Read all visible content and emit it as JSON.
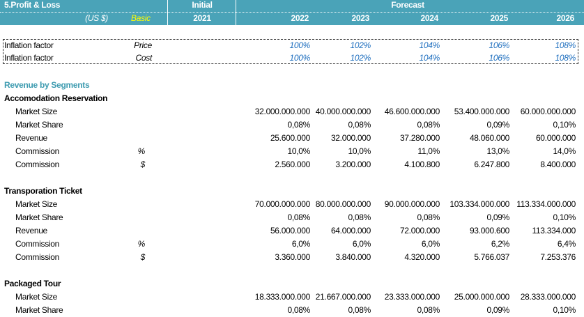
{
  "header": {
    "title": "5.Profit & Loss",
    "currency": "(US $)",
    "scenario": "Basic",
    "initial": "Initial",
    "forecast": "Forecast",
    "years": [
      "2021",
      "2022",
      "2023",
      "2024",
      "2025",
      "2026"
    ]
  },
  "inflation": [
    {
      "label": "Inflation factor",
      "type": "Price",
      "values": [
        "100%",
        "102%",
        "104%",
        "106%",
        "108%"
      ]
    },
    {
      "label": "Inflation factor",
      "type": "Cost",
      "values": [
        "100%",
        "102%",
        "104%",
        "106%",
        "108%"
      ]
    }
  ],
  "section_title": "Revenue by Segments",
  "segments": [
    {
      "name": "Accomodation Reservation",
      "rows": [
        {
          "label": "Market Size",
          "values": [
            "32.000.000.000",
            "40.000.000.000",
            "46.600.000.000",
            "53.400.000.000",
            "60.000.000.000"
          ]
        },
        {
          "label": "Market Share",
          "values": [
            "0,08%",
            "0,08%",
            "0,08%",
            "0,09%",
            "0,10%"
          ]
        },
        {
          "label": "Revenue",
          "values": [
            "25.600.000",
            "32.000.000",
            "37.280.000",
            "48.060.000",
            "60.000.000"
          ]
        },
        {
          "label": "Commission",
          "unit": "%",
          "values": [
            "10,0%",
            "10,0%",
            "11,0%",
            "13,0%",
            "14,0%"
          ]
        },
        {
          "label": "Commission",
          "unit": "$",
          "values": [
            "2.560.000",
            "3.200.000",
            "4.100.800",
            "6.247.800",
            "8.400.000"
          ]
        }
      ]
    },
    {
      "name": "Transporation Ticket",
      "rows": [
        {
          "label": "Market Size",
          "values": [
            "70.000.000.000",
            "80.000.000.000",
            "90.000.000.000",
            "103.334.000.000",
            "113.334.000.000"
          ]
        },
        {
          "label": "Market Share",
          "values": [
            "0,08%",
            "0,08%",
            "0,08%",
            "0,09%",
            "0,10%"
          ]
        },
        {
          "label": "Revenue",
          "values": [
            "56.000.000",
            "64.000.000",
            "72.000.000",
            "93.000.600",
            "113.334.000"
          ]
        },
        {
          "label": "Commission",
          "unit": "%",
          "values": [
            "6,0%",
            "6,0%",
            "6,0%",
            "6,2%",
            "6,4%"
          ]
        },
        {
          "label": "Commission",
          "unit": "$",
          "values": [
            "3.360.000",
            "3.840.000",
            "4.320.000",
            "5.766.037",
            "7.253.376"
          ]
        }
      ]
    },
    {
      "name": "Packaged Tour",
      "rows": [
        {
          "label": "Market Size",
          "values": [
            "18.333.000.000",
            "21.667.000.000",
            "23.333.000.000",
            "25.000.000.000",
            "28.333.000.000"
          ]
        },
        {
          "label": "Market Share",
          "values": [
            "0,08%",
            "0,08%",
            "0,08%",
            "0,09%",
            "0,10%"
          ]
        }
      ]
    }
  ]
}
